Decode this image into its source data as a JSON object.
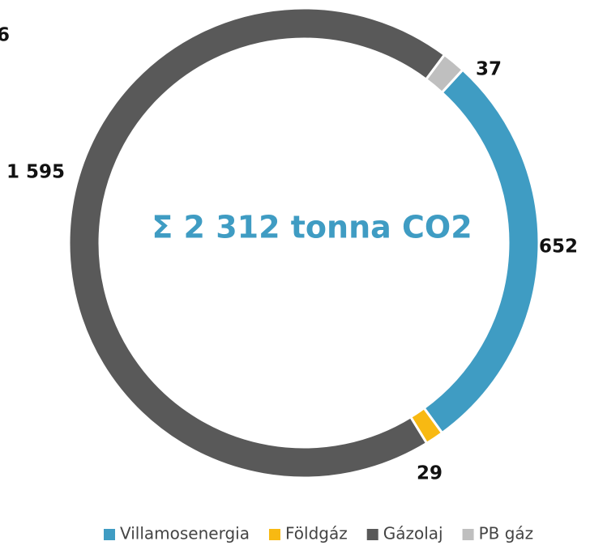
{
  "corner_text": "6",
  "chart_data": {
    "type": "donut",
    "center_text": "Σ 2 312 tonna CO2",
    "categories": [
      "Villamosenergia",
      "Földgáz",
      "Gázolaj",
      "PB gáz"
    ],
    "values": [
      652,
      29,
      1595,
      37
    ],
    "value_labels": [
      "652",
      "29",
      "1 595",
      "37"
    ],
    "colors": [
      "#3f9cc3",
      "#f8b912",
      "#595959",
      "#bfbfbf"
    ],
    "legend": "bottom"
  }
}
